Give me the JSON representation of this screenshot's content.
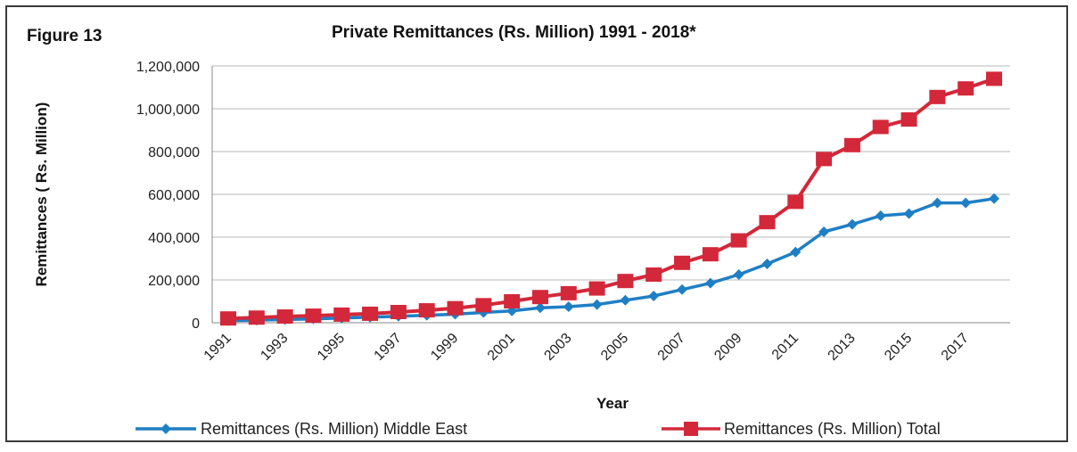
{
  "figure_label": "Figure 13",
  "chart_data": {
    "type": "line",
    "title": "Private Remittances (Rs. Million) 1991 - 2018*",
    "xlabel": "Year",
    "ylabel": "Remittances ( Rs. Million)",
    "ylim": [
      0,
      1200000
    ],
    "yticks": [
      0,
      200000,
      400000,
      600000,
      800000,
      1000000,
      1200000
    ],
    "ytick_labels": [
      "0",
      "200,000",
      "400,000",
      "600,000",
      "800,000",
      "1,000,000",
      "1,200,000"
    ],
    "xtick_labels": [
      "1991",
      "1993",
      "1995",
      "1997",
      "1999",
      "2001",
      "2003",
      "2005",
      "2007",
      "2009",
      "2011",
      "2013",
      "2015",
      "2017"
    ],
    "grid": "horizontal",
    "legend_position": "bottom",
    "x": [
      1991,
      1992,
      1993,
      1994,
      1995,
      1996,
      1997,
      1998,
      1999,
      2000,
      2001,
      2002,
      2003,
      2004,
      2005,
      2006,
      2007,
      2008,
      2009,
      2010,
      2011,
      2012,
      2013,
      2014,
      2015,
      2016,
      2017,
      2018
    ],
    "series": [
      {
        "name": "Remittances (Rs. Million) Middle East",
        "color": "#1f7fc4",
        "marker": "diamond",
        "values": [
          10000,
          12000,
          15000,
          18000,
          22000,
          26000,
          30000,
          35000,
          40000,
          48000,
          55000,
          70000,
          75000,
          85000,
          105000,
          125000,
          155000,
          185000,
          225000,
          275000,
          330000,
          425000,
          460000,
          500000,
          510000,
          560000,
          560000,
          580000
        ]
      },
      {
        "name": "Remittances (Rs. Million) Total",
        "color": "#d3283a",
        "marker": "square",
        "values": [
          20000,
          24000,
          29000,
          33000,
          38000,
          42000,
          50000,
          58000,
          68000,
          82000,
          100000,
          120000,
          138000,
          160000,
          195000,
          225000,
          280000,
          320000,
          385000,
          470000,
          565000,
          765000,
          830000,
          915000,
          950000,
          1055000,
          1095000,
          1140000
        ]
      }
    ]
  }
}
